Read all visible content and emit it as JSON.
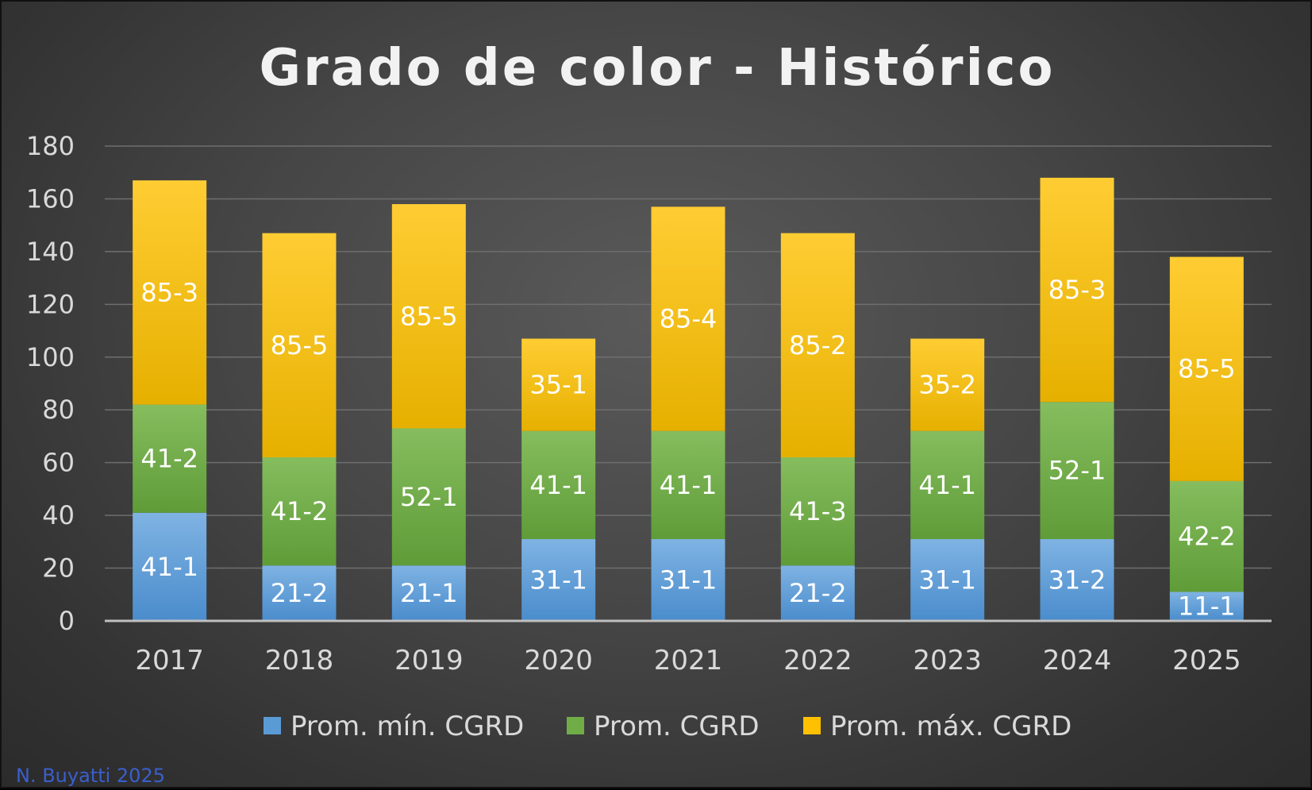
{
  "chart_data": {
    "type": "bar",
    "stacked": true,
    "title": "Grado de color - Histórico",
    "xlabel": "",
    "ylabel": "",
    "ylim": [
      0,
      180
    ],
    "yticks": [
      "0",
      "20",
      "40",
      "60",
      "80",
      "100",
      "120",
      "140",
      "160",
      "180"
    ],
    "grid": true,
    "categories": [
      "2017",
      "2018",
      "2019",
      "2020",
      "2021",
      "2022",
      "2023",
      "2024",
      "2025"
    ],
    "series": [
      {
        "name": "Prom. mín. CGRD",
        "color": "#5b9bd5",
        "values": [
          41,
          21,
          21,
          31,
          31,
          21,
          31,
          31,
          11
        ],
        "labels": [
          "41-1",
          "21-2",
          "21-1",
          "31-1",
          "31-1",
          "21-2",
          "31-1",
          "31-2",
          "11-1"
        ]
      },
      {
        "name": "Prom. CGRD",
        "color": "#70ad47",
        "values": [
          41,
          41,
          52,
          41,
          41,
          41,
          41,
          52,
          42
        ],
        "labels": [
          "41-2",
          "41-2",
          "52-1",
          "41-1",
          "41-1",
          "41-3",
          "41-1",
          "52-1",
          "42-2"
        ]
      },
      {
        "name": "Prom. máx. CGRD",
        "color": "#ffc000",
        "values": [
          85,
          85,
          85,
          35,
          85,
          85,
          35,
          85,
          85
        ],
        "labels": [
          "85-3",
          "85-5",
          "85-5",
          "35-1",
          "85-4",
          "85-2",
          "35-2",
          "85-3",
          "85-5"
        ]
      }
    ],
    "legend_position": "bottom"
  },
  "footer": {
    "author": "N. Buyatti 2025"
  }
}
